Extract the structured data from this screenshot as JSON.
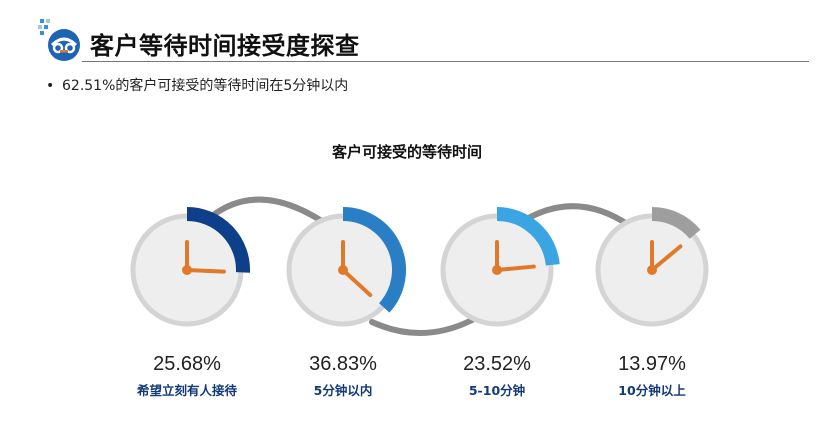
{
  "header": {
    "title": "客户等待时间接受度探查",
    "logo_icon": "camera-logo-icon"
  },
  "bullet": {
    "symbol": "•",
    "text": "62.51%的客户可接受的等待时间在5分钟以内"
  },
  "colors": {
    "arc_dark_blue": "#0d3f8a",
    "arc_mid_blue": "#2a7fc4",
    "arc_light_blue": "#3ba4e2",
    "arc_gray": "#9e9e9e",
    "hand_orange": "#e07a2a",
    "label_blue": "#123a78",
    "connector_gray": "#8a8a8a"
  },
  "chart_data": {
    "type": "gauge",
    "title": "客户可接受的等待时间",
    "categories": [
      "希望立刻有人接待",
      "5分钟以内",
      "5-10分钟",
      "10分钟以上"
    ],
    "values": [
      25.68,
      36.83,
      23.52,
      13.97
    ],
    "value_labels": [
      "25.68%",
      "36.83%",
      "23.52%",
      "13.97%"
    ],
    "unit": "%"
  }
}
